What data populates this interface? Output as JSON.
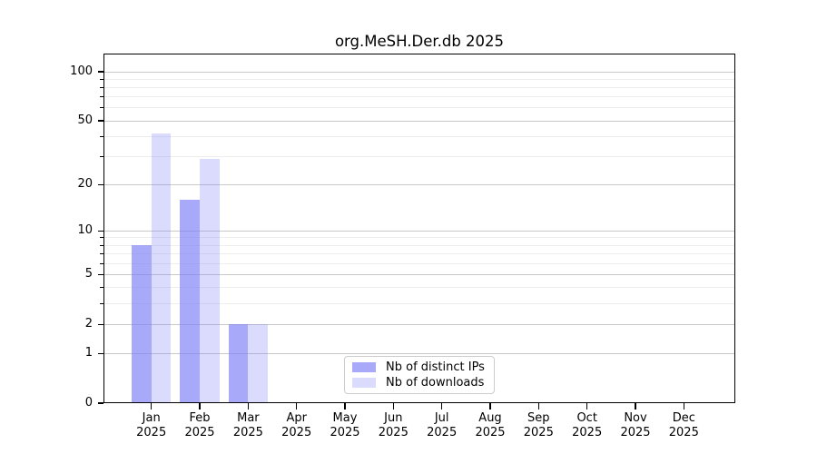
{
  "chart_data": {
    "type": "bar",
    "title": "org.MeSH.Der.db 2025",
    "yscale": "log1p",
    "grid": true,
    "legend_position": "lower center",
    "categories": [
      "Jan",
      "Feb",
      "Mar",
      "Apr",
      "May",
      "Jun",
      "Jul",
      "Aug",
      "Sep",
      "Oct",
      "Nov",
      "Dec"
    ],
    "category_year": "2025",
    "series": [
      {
        "name": "Nb of distinct IPs",
        "color": "rgba(124,124,247,0.66)",
        "values": [
          8,
          16,
          2,
          0,
          0,
          0,
          0,
          0,
          0,
          0,
          0,
          0
        ]
      },
      {
        "name": "Nb of downloads",
        "color": "rgba(124,124,247,0.28)",
        "values": [
          42,
          29,
          2,
          0,
          0,
          0,
          0,
          0,
          0,
          0,
          0,
          0
        ]
      }
    ],
    "y_major_ticks": [
      0,
      1,
      2,
      5,
      10,
      20,
      50,
      100
    ],
    "y_minor_ticks": [
      3,
      4,
      6,
      7,
      8,
      9,
      30,
      40,
      60,
      70,
      80,
      90
    ],
    "ylim": [
      0,
      110
    ],
    "colors": {
      "grid_major": "#c9c9c9",
      "grid_minor": "#ededed",
      "frame": "#000000",
      "text": "#000000"
    }
  }
}
